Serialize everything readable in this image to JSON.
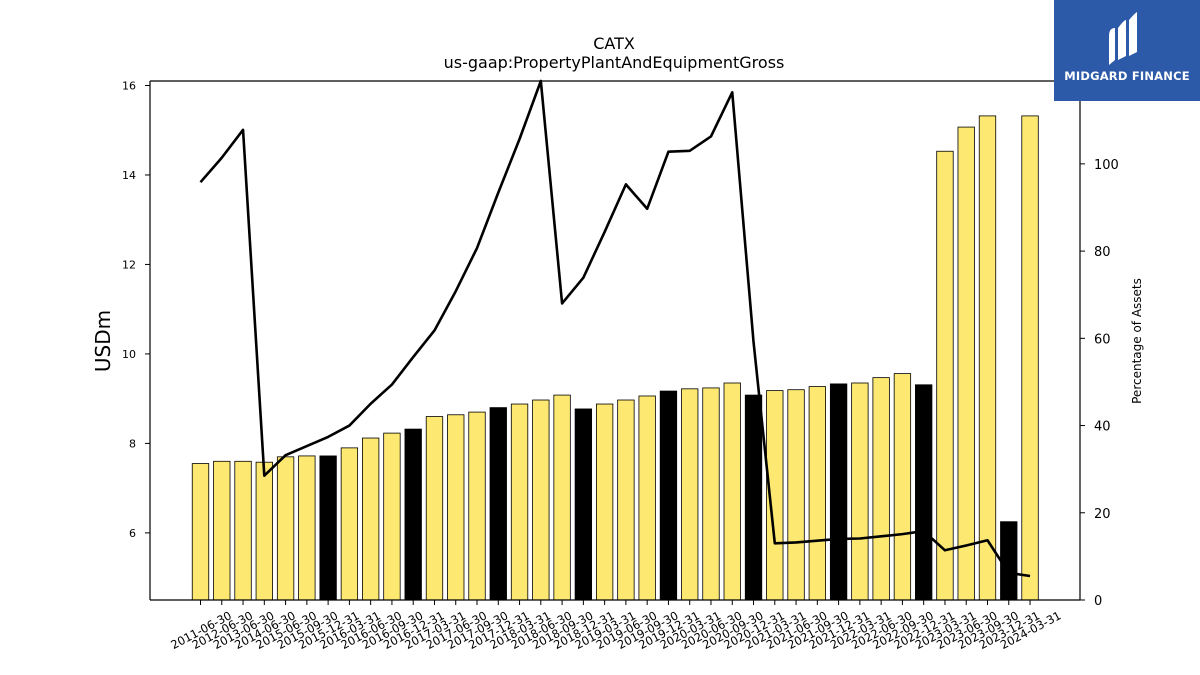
{
  "brand": {
    "name": "MIDGARD FINANCE",
    "bg_color": "#2d5aa8"
  },
  "chart_data": {
    "type": "bar",
    "title": "CATX",
    "subtitle": "us-gaap:PropertyPlantAndEquipmentGross",
    "ylabel": "USDm",
    "y2label": "Percentage of Assets",
    "ylim": [
      4.5,
      16.1
    ],
    "y2lim": [
      0,
      119
    ],
    "yticks": [
      6,
      8,
      10,
      12,
      14,
      16
    ],
    "y2ticks": [
      0,
      20,
      40,
      60,
      80,
      100
    ],
    "categories": [
      "2011-06-30",
      "2012-06-30",
      "2013-06-30",
      "2014-06-30",
      "2015-06-30",
      "2015-09-30",
      "2015-12-31",
      "2016-03-31",
      "2016-06-30",
      "2016-09-30",
      "2016-12-31",
      "2017-03-31",
      "2017-06-30",
      "2017-09-30",
      "2017-12-31",
      "2018-03-31",
      "2018-06-30",
      "2018-09-30",
      "2018-12-31",
      "2019-03-31",
      "2019-06-30",
      "2019-09-30",
      "2019-12-31",
      "2020-03-31",
      "2020-06-30",
      "2020-09-30",
      "2020-12-31",
      "2021-03-31",
      "2021-06-30",
      "2021-09-30",
      "2021-12-31",
      "2022-03-31",
      "2022-06-30",
      "2022-09-30",
      "2022-12-31",
      "2023-03-31",
      "2023-06-30",
      "2023-09-30",
      "2023-12-31",
      "2024-03-31"
    ],
    "bar_positions": [
      0,
      1,
      2,
      3,
      4,
      5,
      6,
      7,
      8,
      9,
      10,
      11,
      12,
      13,
      14,
      15,
      16,
      17,
      18,
      19,
      20,
      21,
      22,
      23,
      24,
      25,
      26,
      27,
      28,
      29,
      30,
      31,
      32,
      33,
      34,
      35,
      36,
      37,
      38,
      39
    ],
    "series": [
      {
        "name": "PropertyPlantAndEquipmentGross",
        "axis": "left",
        "kind": "bar",
        "values": [
          7.55,
          7.6,
          7.6,
          7.58,
          7.7,
          7.72,
          7.72,
          7.9,
          8.12,
          8.23,
          8.32,
          8.6,
          8.64,
          8.7,
          8.8,
          8.88,
          8.97,
          9.08,
          8.77,
          8.88,
          8.97,
          9.06,
          9.17,
          9.22,
          9.24,
          9.35,
          9.08,
          9.18,
          9.2,
          9.27,
          9.33,
          9.35,
          9.47,
          9.56,
          9.31,
          14.53,
          15.07,
          15.32,
          6.25,
          15.32
        ],
        "colors": [
          "#fde871",
          "#fde871",
          "#fde871",
          "#fde871",
          "#fde871",
          "#fde871",
          "#000000",
          "#fde871",
          "#fde871",
          "#fde871",
          "#000000",
          "#fde871",
          "#fde871",
          "#fde871",
          "#000000",
          "#fde871",
          "#fde871",
          "#fde871",
          "#000000",
          "#fde871",
          "#fde871",
          "#fde871",
          "#000000",
          "#fde871",
          "#fde871",
          "#fde871",
          "#000000",
          "#fde871",
          "#fde871",
          "#fde871",
          "#000000",
          "#fde871",
          "#fde871",
          "#fde871",
          "#000000",
          "#fde871",
          "#fde871",
          "#fde871",
          "#000000",
          "#fde871"
        ]
      },
      {
        "name": "Percentage of Assets",
        "axis": "right",
        "kind": "line",
        "color": "#000000",
        "values": [
          95.8,
          101.4,
          107.8,
          28.5,
          33.2,
          35.3,
          37.4,
          40.0,
          45.0,
          49.4,
          55.7,
          61.8,
          70.8,
          80.7,
          93.4,
          105.7,
          119.0,
          68.0,
          73.9,
          84.4,
          95.3,
          89.7,
          102.8,
          103.0,
          106.3,
          116.4,
          59.2,
          13.0,
          13.2,
          13.6,
          14.0,
          14.1,
          14.6,
          15.1,
          15.8,
          11.4,
          12.5,
          13.7,
          6.2,
          5.5
        ]
      }
    ],
    "grid": false,
    "legend": "none"
  }
}
